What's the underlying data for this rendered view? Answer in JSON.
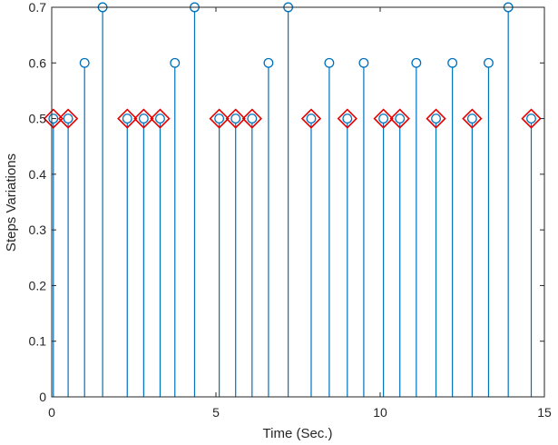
{
  "chart_data": {
    "type": "stem",
    "xlabel": "Time (Sec.)",
    "ylabel": "Steps Variations",
    "xlim": [
      0,
      15
    ],
    "ylim": [
      0,
      0.7
    ],
    "xticks": [
      0,
      5,
      10,
      15
    ],
    "yticks": [
      0,
      0.1,
      0.2,
      0.3,
      0.4,
      0.5,
      0.6,
      0.7
    ],
    "grid": false,
    "series": [
      {
        "marker": "circle",
        "color": "#0072BD",
        "x": [
          0.05,
          0.5,
          1.0,
          1.55,
          2.3,
          2.8,
          3.3,
          3.75,
          4.35,
          5.1,
          5.6,
          6.1,
          6.6,
          7.2,
          7.9,
          8.45,
          9.0,
          9.5,
          10.1,
          10.6,
          11.1,
          11.7,
          12.2,
          12.8,
          13.3,
          13.9,
          14.6
        ],
        "y": [
          0.5,
          0.5,
          0.6,
          0.7,
          0.5,
          0.5,
          0.5,
          0.6,
          0.7,
          0.5,
          0.5,
          0.5,
          0.6,
          0.7,
          0.5,
          0.6,
          0.5,
          0.6,
          0.5,
          0.5,
          0.6,
          0.5,
          0.6,
          0.5,
          0.6,
          0.7,
          0.5
        ]
      },
      {
        "marker": "diamond",
        "color": "#E60000",
        "x": [
          0.05,
          0.5,
          2.3,
          2.8,
          3.3,
          5.1,
          5.6,
          6.1,
          7.9,
          9.0,
          10.1,
          10.6,
          11.7,
          12.8,
          14.6
        ],
        "y": [
          0.5,
          0.5,
          0.5,
          0.5,
          0.5,
          0.5,
          0.5,
          0.5,
          0.5,
          0.5,
          0.5,
          0.5,
          0.5,
          0.5,
          0.5
        ]
      }
    ]
  }
}
